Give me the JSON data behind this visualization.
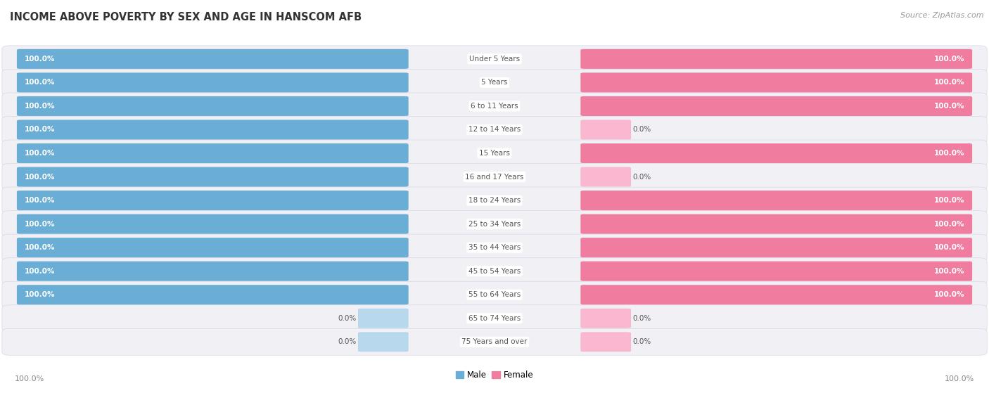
{
  "title": "INCOME ABOVE POVERTY BY SEX AND AGE IN HANSCOM AFB",
  "source": "Source: ZipAtlas.com",
  "categories": [
    "Under 5 Years",
    "5 Years",
    "6 to 11 Years",
    "12 to 14 Years",
    "15 Years",
    "16 and 17 Years",
    "18 to 24 Years",
    "25 to 34 Years",
    "35 to 44 Years",
    "45 to 54 Years",
    "55 to 64 Years",
    "65 to 74 Years",
    "75 Years and over"
  ],
  "male_values": [
    100.0,
    100.0,
    100.0,
    100.0,
    100.0,
    100.0,
    100.0,
    100.0,
    100.0,
    100.0,
    100.0,
    0.0,
    0.0
  ],
  "female_values": [
    100.0,
    100.0,
    100.0,
    0.0,
    100.0,
    0.0,
    100.0,
    100.0,
    100.0,
    100.0,
    100.0,
    0.0,
    0.0
  ],
  "male_color": "#6aadd5",
  "female_color": "#f07ca0",
  "male_color_zero": "#b8d8ed",
  "female_color_zero": "#f9b8cf",
  "row_bg_color": "#f0f0f5",
  "row_border_color": "#e0e0ea",
  "max_value": 100.0,
  "bar_label_color_white": "#ffffff",
  "bar_label_color_dark": "#555555",
  "cat_label_color": "#555555",
  "title_color": "#333333",
  "source_color": "#999999",
  "axis_label_color": "#888888"
}
